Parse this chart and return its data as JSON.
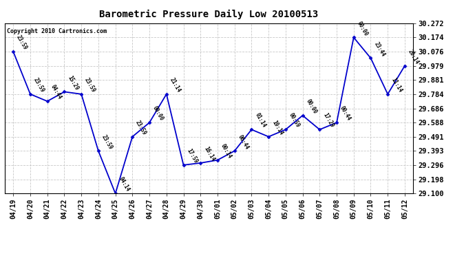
{
  "title": "Barometric Pressure Daily Low 20100513",
  "copyright": "Copyright 2010 Cartronics.com",
  "background_color": "#ffffff",
  "plot_bg_color": "#ffffff",
  "grid_color": "#c8c8c8",
  "line_color": "#0000cc",
  "marker_color": "#0000cc",
  "x_labels": [
    "04/19",
    "04/20",
    "04/21",
    "04/22",
    "04/23",
    "04/24",
    "04/25",
    "04/26",
    "04/27",
    "04/28",
    "04/29",
    "04/30",
    "05/01",
    "05/02",
    "05/03",
    "05/04",
    "05/05",
    "05/06",
    "05/07",
    "05/08",
    "05/09",
    "05/10",
    "05/11",
    "05/12"
  ],
  "point_labels": [
    "23:59",
    "23:59",
    "04:44",
    "15:29",
    "23:59",
    "23:59",
    "04:14",
    "23:59",
    "00:00",
    "21:14",
    "17:59",
    "16:14",
    "00:14",
    "06:44",
    "01:14",
    "19:14",
    "00:59",
    "00:00",
    "17:29",
    "00:44",
    "00:00",
    "23:44",
    "11:14",
    "20:14"
  ],
  "y_values": [
    30.076,
    29.784,
    29.735,
    29.8,
    29.784,
    29.393,
    29.1,
    29.491,
    29.588,
    29.784,
    29.296,
    29.31,
    29.33,
    29.393,
    29.54,
    29.491,
    29.54,
    29.637,
    29.54,
    29.588,
    30.174,
    30.032,
    29.784,
    29.979
  ],
  "ylim_min": 29.1,
  "ylim_max": 30.272,
  "yticks": [
    29.1,
    29.198,
    29.296,
    29.393,
    29.491,
    29.588,
    29.686,
    29.784,
    29.881,
    29.979,
    30.076,
    30.174,
    30.272
  ]
}
